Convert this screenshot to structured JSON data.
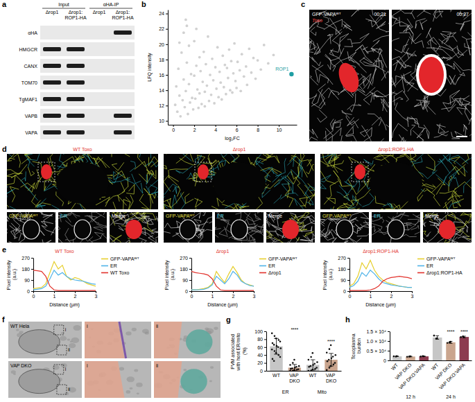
{
  "panel_letters": [
    "a",
    "b",
    "c",
    "d",
    "e",
    "f",
    "g",
    "h"
  ],
  "blot": {
    "headers": [
      "Input",
      "αHA-IP"
    ],
    "lanes": [
      "Δrop1",
      "Δrop1:ROP1-HA",
      "Δrop1",
      "Δrop1:ROP1-HA"
    ],
    "rows": [
      {
        "label": "αHA",
        "bands": [
          false,
          false,
          false,
          true
        ]
      },
      {
        "label": "HMGCR",
        "bands": [
          true,
          true,
          false,
          false
        ]
      },
      {
        "label": "CANX",
        "bands": [
          true,
          true,
          false,
          false
        ]
      },
      {
        "label": "TOM70",
        "bands": [
          true,
          true,
          false,
          false
        ]
      },
      {
        "label": "TgMAF1",
        "bands": [
          true,
          true,
          false,
          false
        ]
      },
      {
        "label": "VAPB",
        "bands": [
          true,
          true,
          false,
          true
        ]
      },
      {
        "label": "VAPA",
        "bands": [
          true,
          true,
          false,
          true
        ]
      }
    ]
  },
  "live_imaging": {
    "channel": "GFP-VAPAᵂᵀ",
    "parasite": "Toxo",
    "times": [
      "00:21",
      "00:27"
    ]
  },
  "localization": {
    "strains": [
      "WT Toxo",
      "Δrop1",
      "Δrop1:ROP1-HA"
    ],
    "insets": [
      "GFP-VAPAᵂᵀ",
      "ER",
      "Merge"
    ]
  },
  "em": {
    "rows": [
      "WT Hela",
      "VAP DKO"
    ],
    "zooms": [
      "i",
      "ii"
    ]
  },
  "chart_data": [
    {
      "type": "scatter",
      "x_label": "log₂FC",
      "y_label": "LFQ intensity",
      "xlim": [
        -0.5,
        11.7
      ],
      "xticks": [
        0,
        2,
        4,
        6,
        8,
        10
      ],
      "ylim": [
        9.5,
        24.5
      ],
      "yticks": [
        10,
        12,
        14,
        16,
        18,
        20,
        22,
        24
      ],
      "series": [
        {
          "color": "#c9c9c9",
          "x": [
            0.2,
            0.3,
            0.4,
            0.5,
            0.6,
            0.7,
            0.8,
            0.9,
            1.0,
            1.0,
            1.1,
            1.2,
            1.2,
            1.3,
            1.4,
            1.5,
            1.5,
            1.6,
            1.7,
            1.8,
            1.9,
            2.0,
            2.0,
            2.1,
            2.2,
            2.3,
            2.4,
            2.5,
            2.5,
            2.6,
            2.7,
            2.8,
            2.9,
            3.0,
            3.0,
            3.1,
            3.2,
            3.3,
            3.4,
            3.5,
            3.6,
            3.7,
            3.8,
            3.9,
            4.0,
            4.1,
            4.2,
            4.3,
            4.4,
            4.5,
            4.6,
            4.7,
            4.8,
            4.9,
            5.0,
            5.1,
            5.2,
            5.3,
            5.4,
            5.5,
            5.6,
            5.7,
            5.8,
            5.9,
            6.0,
            6.1,
            6.3,
            6.4,
            6.5,
            6.7,
            6.9,
            7.0,
            7.2,
            7.4,
            7.6,
            7.8,
            8.0,
            8.3,
            8.6,
            9.0,
            9.5,
            1.3,
            0.6,
            2.2
          ],
          "values": [
            12.1,
            14.5,
            11.2,
            16.8,
            13.3,
            10.6,
            18.9,
            12.7,
            15.4,
            21.5,
            11.8,
            13.9,
            23.2,
            17.6,
            10.9,
            14.8,
            19.8,
            12.4,
            16.1,
            13.0,
            11.5,
            15.9,
            20.4,
            12.9,
            17.2,
            14.1,
            11.7,
            18.3,
            13.6,
            16.5,
            12.2,
            15.1,
            19.0,
            13.8,
            11.9,
            17.4,
            14.6,
            21.0,
            12.6,
            16.0,
            13.4,
            18.1,
            15.3,
            12.3,
            17.0,
            14.2,
            19.6,
            13.1,
            16.4,
            15.0,
            12.8,
            18.5,
            14.4,
            17.3,
            13.5,
            16.9,
            15.6,
            19.3,
            14.0,
            17.8,
            13.7,
            16.2,
            20.1,
            15.2,
            14.3,
            17.7,
            16.6,
            13.9,
            18.7,
            15.8,
            17.1,
            14.7,
            19.4,
            16.3,
            18.2,
            15.5,
            17.9,
            16.7,
            19.9,
            17.5,
            18.6,
            22.4,
            20.2,
            22.0
          ]
        },
        {
          "name": "ROP1",
          "color": "#1f9ea3",
          "x": [
            11.2
          ],
          "values": [
            16.1
          ]
        }
      ]
    },
    {
      "type": "line",
      "title": "WT Toxo",
      "x_label": "Distance (µm)",
      "y_label": "Pixel intensity (a.u.)",
      "legend": "right",
      "x": [
        0,
        0.2,
        0.4,
        0.6,
        0.8,
        1,
        1.2,
        1.4,
        1.6,
        1.8,
        2,
        2.2,
        2.4,
        2.6,
        2.8,
        3
      ],
      "xlim": [
        0,
        3
      ],
      "xticks": [
        0,
        1,
        2,
        3
      ],
      "ylim": [
        0,
        270
      ],
      "yticks": [
        0,
        90,
        180,
        270
      ],
      "series": [
        {
          "name": "GFP-VAPAᵂᵀ",
          "color": "#e6cf2e",
          "values": [
            20,
            25,
            30,
            60,
            150,
            240,
            180,
            210,
            120,
            90,
            110,
            100,
            80,
            60,
            50,
            40
          ]
        },
        {
          "name": "ER",
          "color": "#4fb3e8",
          "values": [
            10,
            15,
            20,
            40,
            100,
            170,
            130,
            150,
            120,
            100,
            90,
            85,
            80,
            70,
            60,
            55
          ]
        },
        {
          "name": "WT Toxo",
          "color": "#e2312b",
          "values": [
            170,
            165,
            160,
            120,
            40,
            10,
            5,
            5,
            5,
            5,
            5,
            5,
            5,
            5,
            5,
            5
          ]
        }
      ]
    },
    {
      "type": "line",
      "title": "Δrop1",
      "x_label": "Distance (µm)",
      "y_label": "Pixel intensity (a.u.)",
      "legend": "right",
      "x": [
        0,
        0.2,
        0.4,
        0.6,
        0.8,
        1,
        1.2,
        1.4,
        1.6,
        1.8,
        2,
        2.2,
        2.4,
        2.6,
        2.8,
        3
      ],
      "xlim": [
        0,
        3
      ],
      "xticks": [
        0,
        1,
        2,
        3
      ],
      "ylim": [
        0,
        270
      ],
      "yticks": [
        0,
        90,
        180,
        270
      ],
      "series": [
        {
          "name": "GFP-VAPAᵂᵀ",
          "color": "#e6cf2e",
          "values": [
            10,
            10,
            15,
            20,
            30,
            60,
            160,
            110,
            70,
            140,
            200,
            150,
            90,
            60,
            50,
            40
          ]
        },
        {
          "name": "ER",
          "color": "#4fb3e8",
          "values": [
            10,
            10,
            12,
            15,
            25,
            50,
            120,
            90,
            60,
            100,
            160,
            130,
            80,
            60,
            45,
            40
          ]
        },
        {
          "name": "Δrop1",
          "color": "#e2312b",
          "values": [
            160,
            150,
            145,
            140,
            130,
            100,
            40,
            10,
            5,
            5,
            5,
            5,
            5,
            5,
            5,
            5
          ]
        }
      ]
    },
    {
      "type": "line",
      "title": "Δrop1:ROP1-HA",
      "x_label": "Distance (µm)",
      "y_label": "Pixel intensity (a.u.)",
      "legend": "right",
      "x": [
        0,
        0.2,
        0.4,
        0.6,
        0.8,
        1,
        1.2,
        1.4,
        1.6,
        1.8,
        2,
        2.2,
        2.4,
        2.6,
        2.8,
        3
      ],
      "xlim": [
        0,
        3
      ],
      "xticks": [
        0,
        1,
        2,
        3
      ],
      "ylim": [
        0,
        270
      ],
      "yticks": [
        0,
        90,
        180,
        270
      ],
      "series": [
        {
          "name": "GFP-VAPAᵂᵀ",
          "color": "#e6cf2e",
          "values": [
            40,
            60,
            120,
            230,
            180,
            250,
            170,
            120,
            90,
            70,
            60,
            50,
            40,
            35,
            30,
            30
          ]
        },
        {
          "name": "ER",
          "color": "#4fb3e8",
          "values": [
            30,
            45,
            80,
            150,
            120,
            170,
            140,
            100,
            70,
            60,
            50,
            45,
            40,
            35,
            30,
            30
          ]
        },
        {
          "name": "Δrop1:ROP1-HA",
          "color": "#e2312b",
          "values": [
            5,
            5,
            5,
            5,
            5,
            10,
            20,
            40,
            80,
            100,
            110,
            115,
            120,
            115,
            110,
            100
          ]
        }
      ]
    },
    {
      "type": "bar",
      "y_label": "PVM associated with host ER/mito (%)",
      "categories": [
        "WT",
        "VAP DKO",
        "WT",
        "VAP DKO"
      ],
      "groups": [
        "ER",
        "ER",
        "Mito",
        "Mito"
      ],
      "values": [
        62,
        8,
        15,
        28
      ],
      "errors": [
        20,
        8,
        13,
        16
      ],
      "colors": [
        "#c6c6c6",
        "#caa58e",
        "#c6c6c6",
        "#caa58e"
      ],
      "points": [
        [
          95,
          88,
          82,
          78,
          74,
          70,
          66,
          63,
          60,
          57,
          54,
          50,
          45,
          40,
          35,
          30,
          25
        ],
        [
          0,
          0,
          2,
          3,
          4,
          5,
          6,
          8,
          10,
          12,
          15,
          20,
          28
        ],
        [
          0,
          0,
          3,
          5,
          8,
          10,
          12,
          15,
          18,
          22,
          28,
          35,
          45
        ],
        [
          2,
          8,
          12,
          16,
          20,
          24,
          28,
          32,
          36,
          40,
          46,
          55,
          65
        ]
      ],
      "significance": [
        null,
        "****",
        null,
        "****"
      ],
      "ylim": [
        0,
        100
      ],
      "yticks": [
        0,
        20,
        40,
        60,
        80,
        100
      ]
    },
    {
      "type": "bar",
      "y_label": "Toxoplasma burden",
      "categories": [
        "WT",
        "VAP DKO",
        "VAP DKO:VAPA",
        "WT",
        "VAP DKO",
        "VAP DKO:VAPA"
      ],
      "groups": [
        "12 h",
        "12 h",
        "12 h",
        "24 h",
        "24 h",
        "24 h"
      ],
      "values": [
        2100,
        2000,
        2100,
        11800,
        9300,
        12100
      ],
      "errors": [
        100,
        150,
        100,
        900,
        500,
        400
      ],
      "colors": [
        "#c6c6c6",
        "#caa58e",
        "#8c3b4f",
        "#c6c6c6",
        "#caa58e",
        "#8c3b4f"
      ],
      "points": [
        [
          2100,
          2000,
          2200
        ],
        [
          1900,
          2000,
          2100
        ],
        [
          2000,
          2200,
          2100
        ],
        [
          12800,
          11200,
          11400
        ],
        [
          9000,
          9300,
          9600
        ],
        [
          12000,
          12400,
          11900
        ]
      ],
      "significance": [
        null,
        null,
        null,
        null,
        "****",
        "****"
      ],
      "ylim": [
        0,
        15000
      ],
      "yticks": [
        0,
        {
          "value": 5000,
          "label": "0.5 × 10⁴"
        },
        {
          "value": 10000,
          "label": "1.0 × 10⁴"
        },
        {
          "value": 15000,
          "label": "1.5 × 10⁴"
        }
      ]
    }
  ]
}
